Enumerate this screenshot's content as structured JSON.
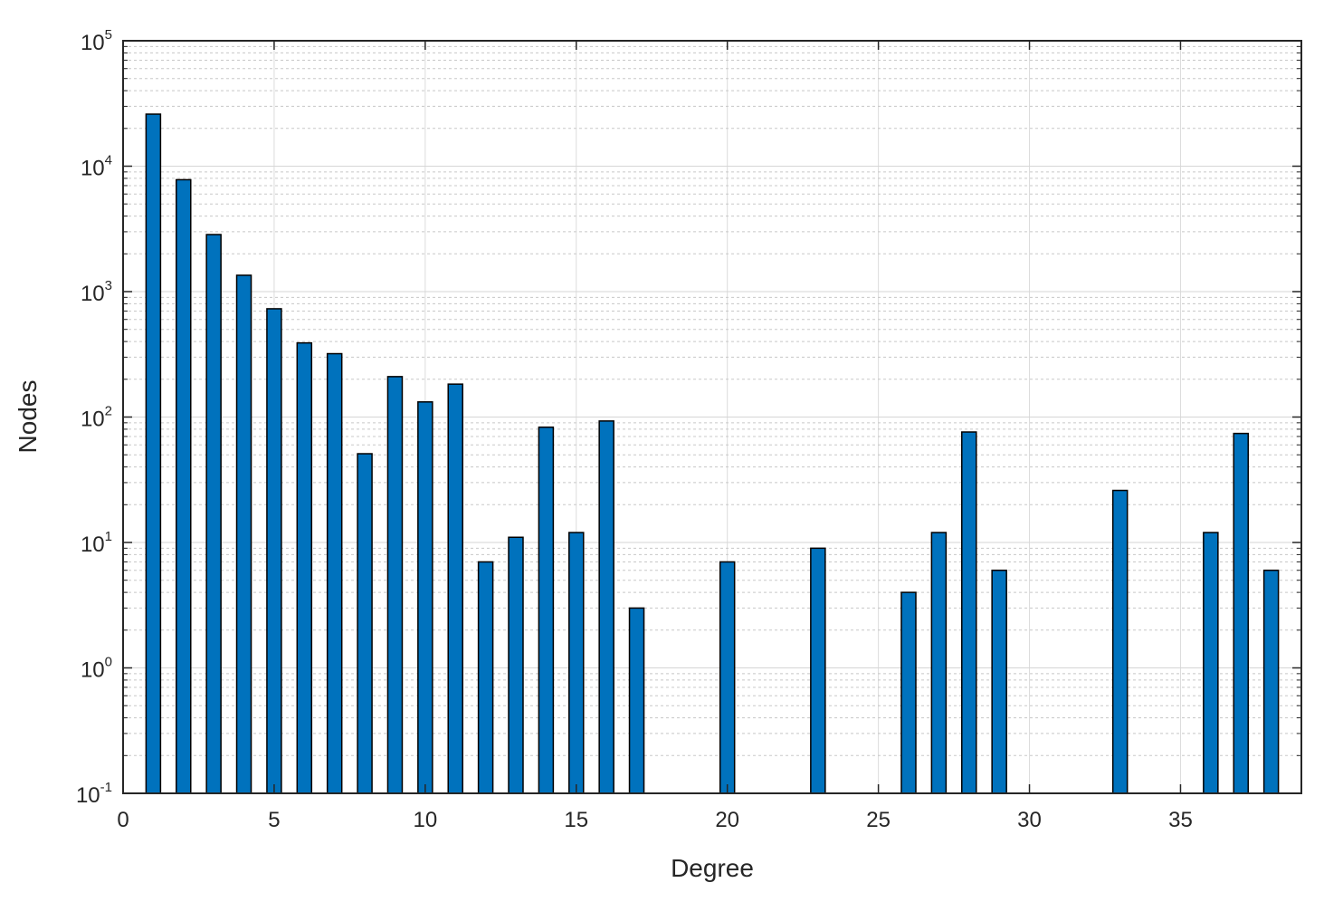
{
  "chart_data": {
    "type": "bar",
    "title": "",
    "xlabel": "Degree",
    "ylabel": "Nodes",
    "yscale": "log",
    "xlim": [
      0,
      39
    ],
    "ylim": [
      0.1,
      100000
    ],
    "x_ticks": [
      0,
      5,
      10,
      15,
      20,
      25,
      30,
      35
    ],
    "x_tick_labels": [
      "0",
      "5",
      "10",
      "15",
      "20",
      "25",
      "30",
      "35"
    ],
    "y_ticks": [
      0.1,
      1,
      10,
      100,
      1000,
      10000,
      100000
    ],
    "y_tick_labels": [
      {
        "base": "10",
        "exp": "-1"
      },
      {
        "base": "10",
        "exp": "0"
      },
      {
        "base": "10",
        "exp": "1"
      },
      {
        "base": "10",
        "exp": "2"
      },
      {
        "base": "10",
        "exp": "3"
      },
      {
        "base": "10",
        "exp": "4"
      },
      {
        "base": "10",
        "exp": "5"
      }
    ],
    "grid": true,
    "minor_grid": true,
    "bar_color": "#0072BD",
    "x": [
      1,
      2,
      3,
      4,
      5,
      6,
      7,
      8,
      9,
      10,
      11,
      12,
      13,
      14,
      15,
      16,
      17,
      20,
      23,
      26,
      27,
      28,
      29,
      33,
      36,
      37,
      38
    ],
    "values": [
      26000,
      7800,
      2850,
      1350,
      730,
      390,
      320,
      51,
      210,
      132,
      183,
      7,
      11,
      83,
      12,
      93,
      3,
      7,
      9,
      4,
      12,
      76,
      6,
      26,
      12,
      74,
      6
    ]
  }
}
